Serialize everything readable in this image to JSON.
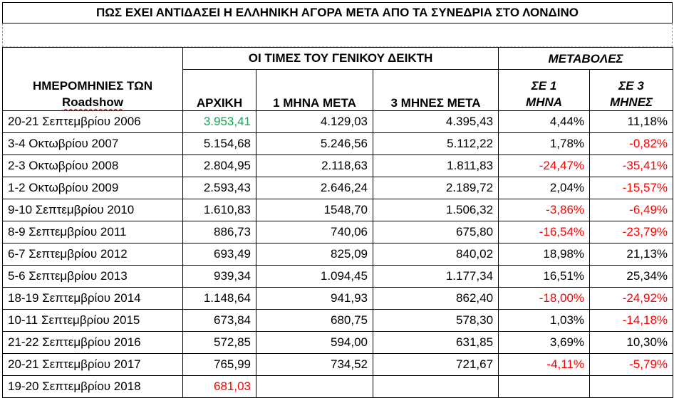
{
  "title": "ΠΩΣ ΕΧΕΙ ΑΝΤΙΔΑΣΕΙ Η ΕΛΛΗΝΙΚΗ ΑΓΟΡΑ ΜΕΤΑ ΑΠΟ ΤΑ ΣΥΝΕΔΡΙΑ ΣΤΟ ΛΟΝΔΙΝΟ",
  "headers": {
    "dates_line1": "ΗΜΕΡΟΜΗΝΙΕΣ ΤΩΝ",
    "dates_line2": "Roadshow",
    "index_group": "ΟΙ ΤΙΜΕΣ ΤΟΥ ΓΕΝΙΚΟΥ ΔΕΙΚΤΗ",
    "changes_group": "ΜΕΤΑΒΟΛΕΣ",
    "initial": "ΑΡΧΙΚΗ",
    "one_month": "1 ΜΗΝΑ ΜΕΤΑ",
    "three_months": "3 ΜΗΝΕΣ ΜΕΤΑ",
    "chg1_line1": "ΣΕ 1",
    "chg1_line2": "ΜΗΝΑ",
    "chg3_line1": "ΣΕ 3",
    "chg3_line2": "ΜΗΝΕΣ"
  },
  "colors": {
    "negative": "#ff0000",
    "highlight_green": "#00b050",
    "border": "#000000"
  },
  "rows": [
    {
      "date": "20-21 Σεπτεμβρίου 2006",
      "initial": "3.953,41",
      "m1": "4.129,03",
      "m3": "4.395,43",
      "c1": "4,44%",
      "c3": "11,18%"
    },
    {
      "date": "3-4 Οκτωβρίου 2007",
      "initial": "5.154,68",
      "m1": "5.246,56",
      "m3": "5.112,22",
      "c1": "1,78%",
      "c3": "-0,82%"
    },
    {
      "date": "2-3 Οκτωβρίου 2008",
      "initial": "2.804,95",
      "m1": "2.118,63",
      "m3": "1.811,83",
      "c1": "-24,47%",
      "c3": "-35,41%"
    },
    {
      "date": "1-2 Οκτωβρίου 2009",
      "initial": "2.593,43",
      "m1": "2.646,24",
      "m3": "2.189,72",
      "c1": "2,04%",
      "c3": "-15,57%"
    },
    {
      "date": "9-10 Σεπτεμβρίου 2010",
      "initial": "1.610,83",
      "m1": "1548,70",
      "m3": "1.506,32",
      "c1": "-3,86%",
      "c3": "-6,49%"
    },
    {
      "date": "8-9 Σεπτεμβρίου 2011",
      "initial": "886,73",
      "m1": "740,06",
      "m3": "675,80",
      "c1": "-16,54%",
      "c3": "-23,79%"
    },
    {
      "date": "6-7 Σεπτεμβρίου 2012",
      "initial": "693,49",
      "m1": "825,09",
      "m3": "840,02",
      "c1": "18,98%",
      "c3": "21,13%"
    },
    {
      "date": "5-6 Σεπτεμβρίου 2013",
      "initial": "939,34",
      "m1": "1.094,45",
      "m3": "1.177,34",
      "c1": "16,51%",
      "c3": "25,34%"
    },
    {
      "date": "18-19 Σεπτεμβρίου 2014",
      "initial": "1.148,64",
      "m1": "941,93",
      "m3": "862,40",
      "c1": "-18,00%",
      "c3": "-24,92%"
    },
    {
      "date": "10-11 Σεπτεμβρίου 2015",
      "initial": "673,84",
      "m1": "680,75",
      "m3": "578,30",
      "c1": "1,03%",
      "c3": "-14,18%"
    },
    {
      "date": "21-22 Σεπτεμβρίου 2016",
      "initial": "572,85",
      "m1": "594,00",
      "m3": "631,85",
      "c1": "3,69%",
      "c3": "10,30%"
    },
    {
      "date": "20-21 Σεπτεμβρίου 2017",
      "initial": "765,99",
      "m1": "734,52",
      "m3": "721,67",
      "c1": "-4,11%",
      "c3": "-5,79%"
    },
    {
      "date": "19-20 Σεπτεμβρίου 2018",
      "initial": "681,03",
      "m1": "",
      "m3": "",
      "c1": "",
      "c3": ""
    }
  ]
}
